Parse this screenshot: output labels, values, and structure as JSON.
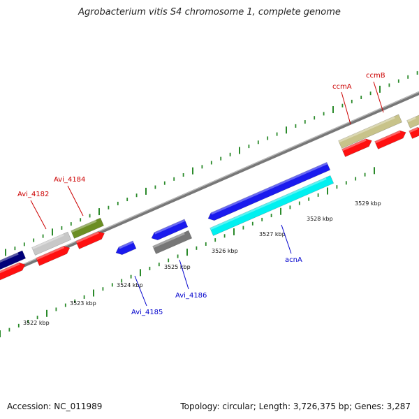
{
  "title": "Agrobacterium vitis S4 chromosome 1, complete genome",
  "footer": {
    "accession": "Accession: NC_011989",
    "summary": "Topology: circular; Length: 3,726,375 bp; Genes: 3,287"
  },
  "scale": {
    "labels": [
      "3522 kbp",
      "3523 kbp",
      "3524 kbp",
      "3525 kbp",
      "3526 kbp",
      "3527 kbp",
      "3528 kbp",
      "3529 kbp"
    ]
  },
  "genes": {
    "forward_labels": [
      "Avi_4182",
      "Avi_4184",
      "ccmA",
      "ccmB"
    ],
    "reverse_labels": [
      "Avi_4185",
      "Avi_4186",
      "acnA"
    ]
  },
  "colors": {
    "forward_label": "#cc0000",
    "reverse_label": "#0000cc",
    "tick": "#2a8a2a",
    "backbone": "#888888",
    "cds_forward": "#ff1010",
    "gene_blue": "#1a1aee",
    "gene_cyan": "#00f0f0",
    "gene_navy": "#00007a",
    "gene_gray": "#777777",
    "gene_lightgray": "#c8c8c8",
    "gene_olive": "#6b8e23",
    "gene_khaki": "#c8c38a"
  }
}
